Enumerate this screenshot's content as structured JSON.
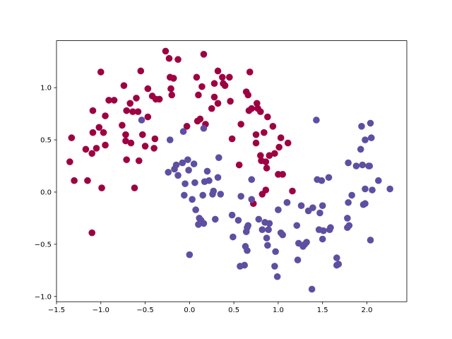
{
  "chart_data": {
    "type": "scatter",
    "xlim": [
      -1.5,
      2.45
    ],
    "ylim": [
      -1.05,
      1.45
    ],
    "x_ticks": [
      -1.5,
      -1.0,
      -0.5,
      0.0,
      0.5,
      1.0,
      1.5,
      2.0
    ],
    "x_tick_labels": [
      "−1.5",
      "−1.0",
      "−0.5",
      "0.0",
      "0.5",
      "1.0",
      "1.5",
      "2.0"
    ],
    "y_ticks": [
      -1.0,
      -0.5,
      0.0,
      0.5,
      1.0
    ],
    "y_tick_labels": [
      "−1.0",
      "−0.5",
      "0.0",
      "0.5",
      "1.0"
    ],
    "grid": false,
    "series": [
      {
        "color": "#9e0142",
        "points": [
          [
            -1.35,
            0.29
          ],
          [
            -1.33,
            0.52
          ],
          [
            -1.3,
            0.11
          ],
          [
            -1.17,
            0.41
          ],
          [
            -1.15,
            0.11
          ],
          [
            -1.1,
            -0.39
          ],
          [
            -1.1,
            0.37
          ],
          [
            -1.09,
            0.57
          ],
          [
            -1.09,
            0.78
          ],
          [
            -1.05,
            0.42
          ],
          [
            -1.02,
            0.62
          ],
          [
            -1.0,
            1.15
          ],
          [
            -0.99,
            0.04
          ],
          [
            -0.97,
            0.57
          ],
          [
            -0.95,
            0.73
          ],
          [
            -0.95,
            0.45
          ],
          [
            -0.91,
            0.88
          ],
          [
            -0.85,
            0.88
          ],
          [
            -0.76,
            0.64
          ],
          [
            -0.74,
            1.02
          ],
          [
            -0.72,
            0.49
          ],
          [
            -0.72,
            0.55
          ],
          [
            -0.71,
            0.78
          ],
          [
            -0.71,
            0.31
          ],
          [
            -0.67,
            0.85
          ],
          [
            -0.66,
            0.47
          ],
          [
            -0.64,
            0.77
          ],
          [
            -0.62,
            0.04
          ],
          [
            -0.6,
            0.9
          ],
          [
            -0.58,
            0.77
          ],
          [
            -0.57,
            0.3
          ],
          [
            -0.55,
            1.16
          ],
          [
            -0.53,
            0.55
          ],
          [
            -0.5,
            0.44
          ],
          [
            -0.47,
            0.99
          ],
          [
            -0.47,
            0.72
          ],
          [
            -0.42,
            0.92
          ],
          [
            -0.4,
            0.42
          ],
          [
            -0.39,
            0.51
          ],
          [
            -0.38,
            0.89
          ],
          [
            -0.34,
            0.89
          ],
          [
            -0.27,
            1.35
          ],
          [
            -0.23,
            1.28
          ],
          [
            -0.22,
            1.1
          ],
          [
            -0.21,
            0.99
          ],
          [
            -0.2,
            0.93
          ],
          [
            -0.18,
            1.09
          ],
          [
            -0.13,
            1.27
          ],
          [
            -0.03,
            0.63
          ],
          [
            0.08,
            1.1
          ],
          [
            0.09,
            0.68
          ],
          [
            0.1,
            0.93
          ],
          [
            0.12,
            0.7
          ],
          [
            0.14,
            1.01
          ],
          [
            0.16,
            1.32
          ],
          [
            0.18,
            0.65
          ],
          [
            0.25,
            0.8
          ],
          [
            0.28,
            0.91
          ],
          [
            0.28,
            1.04
          ],
          [
            0.32,
            1.16
          ],
          [
            0.32,
            0.85
          ],
          [
            0.37,
            1.1
          ],
          [
            0.38,
            1.04
          ],
          [
            0.4,
            1.02
          ],
          [
            0.45,
            1.1
          ],
          [
            0.46,
            0.87
          ],
          [
            0.48,
            0.51
          ],
          [
            0.56,
            0.26
          ],
          [
            0.58,
            0.65
          ],
          [
            0.64,
            0.96
          ],
          [
            0.66,
            0.93
          ],
          [
            0.67,
            0.78
          ],
          [
            0.68,
            1.15
          ],
          [
            0.7,
            0.8
          ],
          [
            0.72,
            -0.11
          ],
          [
            0.75,
            0.55
          ],
          [
            0.75,
            0.47
          ],
          [
            0.76,
            0.85
          ],
          [
            0.77,
            0.8
          ],
          [
            0.8,
            0.35
          ],
          [
            0.8,
            0.77
          ],
          [
            0.81,
            0.3
          ],
          [
            0.82,
            -0.02
          ],
          [
            0.84,
            0.57
          ],
          [
            0.86,
            0.02
          ],
          [
            0.86,
            0.29
          ],
          [
            0.87,
            0.23
          ],
          [
            0.88,
            0.72
          ],
          [
            0.9,
            0.35
          ],
          [
            0.94,
            0.63
          ],
          [
            0.96,
            0.37
          ],
          [
            1.0,
            0.17
          ],
          [
            1.01,
            0.43
          ],
          [
            1.03,
            0.52
          ],
          [
            1.05,
            0.17
          ],
          [
            1.1,
            -0.1
          ],
          [
            1.11,
            0.47
          ],
          [
            1.16,
            0.01
          ]
        ]
      },
      {
        "color": "#5e4fa2",
        "points": [
          [
            -0.54,
            0.69
          ],
          [
            -0.24,
            0.19
          ],
          [
            -0.22,
            0.5
          ],
          [
            -0.17,
            0.22
          ],
          [
            -0.15,
            0.26
          ],
          [
            -0.13,
            0.16
          ],
          [
            -0.08,
            0.28
          ],
          [
            -0.07,
            0.58
          ],
          [
            -0.06,
            -0.03
          ],
          [
            -0.05,
            0.08
          ],
          [
            -0.02,
            0.31
          ],
          [
            -0.01,
            0.21
          ],
          [
            0.0,
            -0.6
          ],
          [
            0.03,
            -0.07
          ],
          [
            0.05,
            0.27
          ],
          [
            0.06,
            0.09
          ],
          [
            0.07,
            -0.17
          ],
          [
            0.1,
            -0.31
          ],
          [
            0.11,
            -0.25
          ],
          [
            0.13,
            -0.27
          ],
          [
            0.15,
            -0.03
          ],
          [
            0.16,
            0.61
          ],
          [
            0.16,
            -0.3
          ],
          [
            0.17,
            0.1
          ],
          [
            0.2,
            0.2
          ],
          [
            0.22,
            0.11
          ],
          [
            0.26,
            -0.02
          ],
          [
            0.27,
            0.01
          ],
          [
            0.29,
            -0.26
          ],
          [
            0.32,
            0.14
          ],
          [
            0.33,
            0.33
          ],
          [
            0.35,
            -0.02
          ],
          [
            0.48,
            -0.22
          ],
          [
            0.49,
            -0.43
          ],
          [
            0.55,
            -0.27
          ],
          [
            0.57,
            -0.71
          ],
          [
            0.58,
            -0.04
          ],
          [
            0.62,
            -0.7
          ],
          [
            0.63,
            -0.52
          ],
          [
            0.64,
            -0.38
          ],
          [
            0.65,
            -0.34
          ],
          [
            0.65,
            -0.56
          ],
          [
            0.66,
            -0.32
          ],
          [
            0.7,
            -0.07
          ],
          [
            0.7,
            0.12
          ],
          [
            0.78,
            -0.26
          ],
          [
            0.82,
            -0.36
          ],
          [
            0.85,
            -0.29
          ],
          [
            0.87,
            -0.44
          ],
          [
            0.88,
            -0.51
          ],
          [
            0.89,
            -0.36
          ],
          [
            0.9,
            -0.3
          ],
          [
            0.96,
            -0.71
          ],
          [
            0.97,
            -0.57
          ],
          [
            0.99,
            -0.81
          ],
          [
            1.0,
            -0.17
          ],
          [
            1.03,
            -0.39
          ],
          [
            1.05,
            -0.41
          ],
          [
            1.1,
            -0.1
          ],
          [
            1.21,
            -0.32
          ],
          [
            1.22,
            -0.65
          ],
          [
            1.23,
            -0.49
          ],
          [
            1.26,
            -0.13
          ],
          [
            1.28,
            -0.52
          ],
          [
            1.3,
            -0.5
          ],
          [
            1.32,
            -0.48
          ],
          [
            1.34,
            -0.18
          ],
          [
            1.38,
            -0.93
          ],
          [
            1.39,
            -0.15
          ],
          [
            1.43,
            0.69
          ],
          [
            1.44,
            0.12
          ],
          [
            1.46,
            -0.36
          ],
          [
            1.47,
            -0.2
          ],
          [
            1.49,
            0.11
          ],
          [
            1.5,
            -0.45
          ],
          [
            1.5,
            -0.13
          ],
          [
            1.51,
            -0.37
          ],
          [
            1.57,
            0.14
          ],
          [
            1.58,
            -0.36
          ],
          [
            1.59,
            -0.34
          ],
          [
            1.66,
            -0.63
          ],
          [
            1.66,
            -0.7
          ],
          [
            1.68,
            -0.69
          ],
          [
            1.78,
            -0.25
          ],
          [
            1.78,
            -0.34
          ],
          [
            1.79,
            -0.1
          ],
          [
            1.79,
            0.28
          ],
          [
            1.8,
            -0.32
          ],
          [
            1.83,
            -0.03
          ],
          [
            1.88,
            0.25
          ],
          [
            1.93,
            0.41
          ],
          [
            1.94,
            0.63
          ],
          [
            1.95,
            0.26
          ],
          [
            1.96,
            -0.12
          ],
          [
            1.98,
            0.5
          ],
          [
            1.98,
            -0.11
          ],
          [
            1.98,
            0.03
          ],
          [
            2.02,
            0.25
          ],
          [
            2.03,
            0.25
          ],
          [
            2.04,
            0.66
          ],
          [
            2.04,
            -0.46
          ],
          [
            2.05,
            0.52
          ],
          [
            2.06,
            0.02
          ],
          [
            2.13,
            0.11
          ],
          [
            2.26,
            0.03
          ]
        ]
      }
    ]
  }
}
